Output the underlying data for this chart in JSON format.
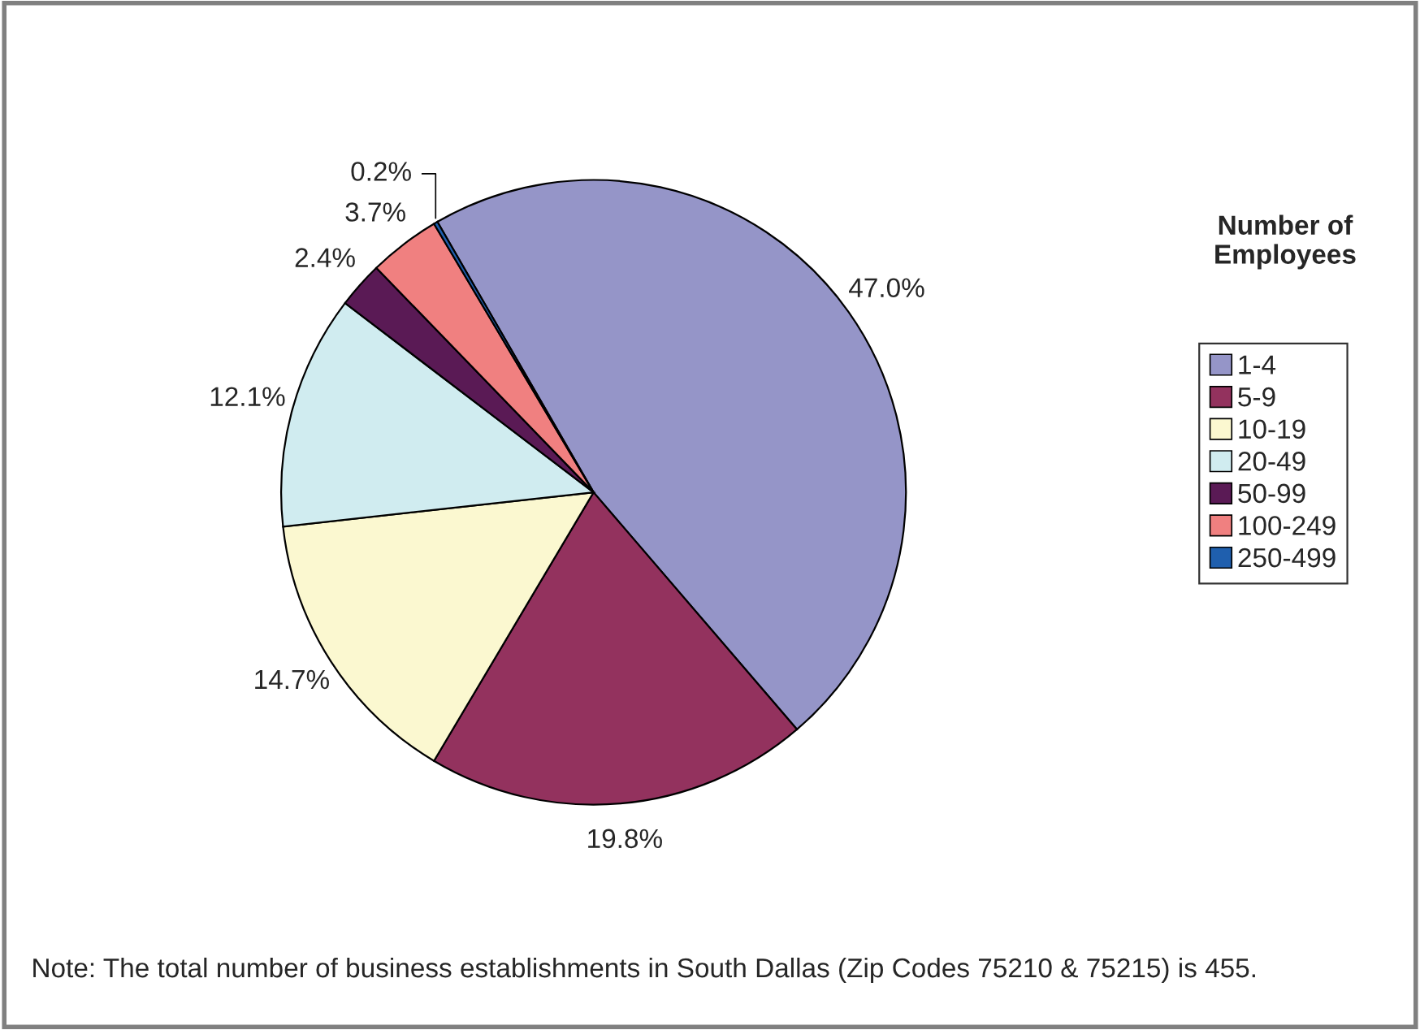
{
  "chart_data": {
    "type": "pie",
    "categories": [
      "1-4",
      "5-9",
      "10-19",
      "20-49",
      "50-99",
      "100-249",
      "250-499"
    ],
    "values": [
      47.0,
      19.8,
      14.7,
      12.1,
      2.4,
      3.7,
      0.2
    ],
    "value_labels": [
      "47.0%",
      "19.8%",
      "14.7%",
      "12.1%",
      "2.4%",
      "3.7%",
      "0.2%"
    ],
    "colors": [
      "#9595c8",
      "#93325e",
      "#fbf8d0",
      "#d0ecf0",
      "#5a1a55",
      "#f08080",
      "#1f5fae"
    ],
    "legend_title": "Number of Employees",
    "legend": "right",
    "annotations": [
      "Note: The total number of business establishments in South Dallas (Zip Codes 75210 & 75215) is 455."
    ]
  }
}
